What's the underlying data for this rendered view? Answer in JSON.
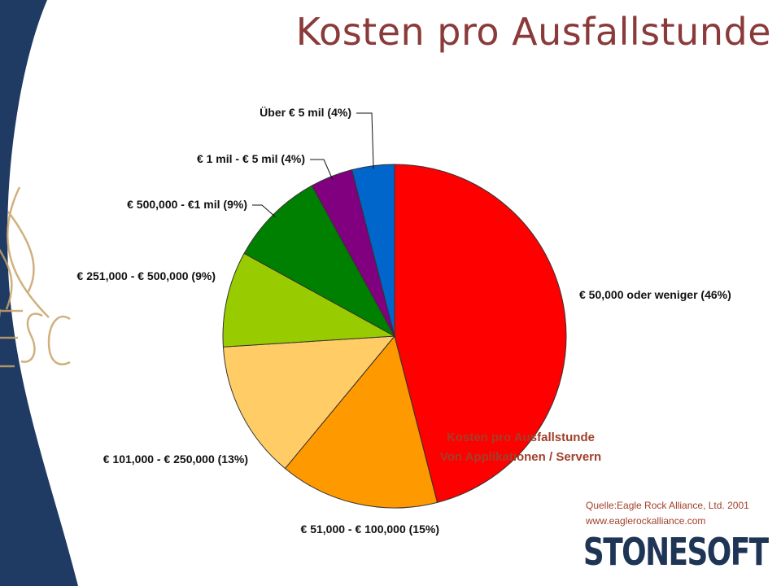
{
  "slide": {
    "title": "Kosten pro Ausfallstunde",
    "subtitle_line1": "Kosten pro Ausfallstunde",
    "subtitle_line2": "Von Applikationen / Servern",
    "source_line1": "Quelle:Eagle Rock Alliance, Ltd. 2001",
    "source_line2": "www.eaglerockalliance.com",
    "logo_text": "STONESOFT",
    "colors": {
      "title": "#8b3a3a",
      "sidebar": "#1f3a63",
      "decor": "#c8a368",
      "logo": "#1f3556"
    }
  },
  "chart_data": {
    "type": "pie",
    "title": "",
    "slices": [
      {
        "label": "€ 50,000 oder weniger (46%)",
        "value": 46,
        "color": "#ff0000"
      },
      {
        "label": "€ 51,000 - € 100,000 (15%)",
        "value": 15,
        "color": "#ff9900"
      },
      {
        "label": "€ 101,000 - € 250,000 (13%)",
        "value": 13,
        "color": "#ffcc66"
      },
      {
        "label": "€ 251,000 - € 500,000 (9%)",
        "value": 9,
        "color": "#99cc00"
      },
      {
        "label": "€ 500,000 - €1 mil (9%)",
        "value": 9,
        "color": "#008000"
      },
      {
        "label": "€ 1 mil - € 5 mil (4%)",
        "value": 4,
        "color": "#800080"
      },
      {
        "label": "Über € 5 mil (4%)",
        "value": 4,
        "color": "#0066cc"
      }
    ],
    "start_angle_deg": 0,
    "direction": "clockwise",
    "legend": "none"
  }
}
